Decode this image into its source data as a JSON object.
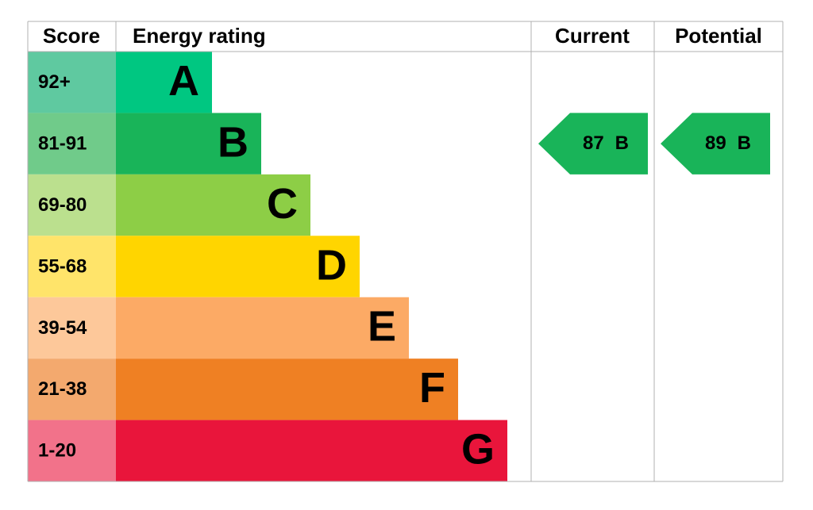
{
  "header": {
    "score": "Score",
    "rating": "Energy rating",
    "current": "Current",
    "potential": "Potential"
  },
  "bands": [
    {
      "score": "92+",
      "letter": "A",
      "color": "#00c781",
      "score_color": "#5fc9a0"
    },
    {
      "score": "81-91",
      "letter": "B",
      "color": "#19b459",
      "score_color": "#70cb8a"
    },
    {
      "score": "69-80",
      "letter": "C",
      "color": "#8dce46",
      "score_color": "#bbe08e"
    },
    {
      "score": "55-68",
      "letter": "D",
      "color": "#ffd500",
      "score_color": "#ffe46a"
    },
    {
      "score": "39-54",
      "letter": "E",
      "color": "#fcaa65",
      "score_color": "#fdc89a"
    },
    {
      "score": "21-38",
      "letter": "F",
      "color": "#ef8023",
      "score_color": "#f3a96e"
    },
    {
      "score": "1-20",
      "letter": "G",
      "color": "#e9153b",
      "score_color": "#f2728a"
    }
  ],
  "current": {
    "value": 87,
    "letter": "B"
  },
  "potential": {
    "value": 89,
    "letter": "B"
  }
}
